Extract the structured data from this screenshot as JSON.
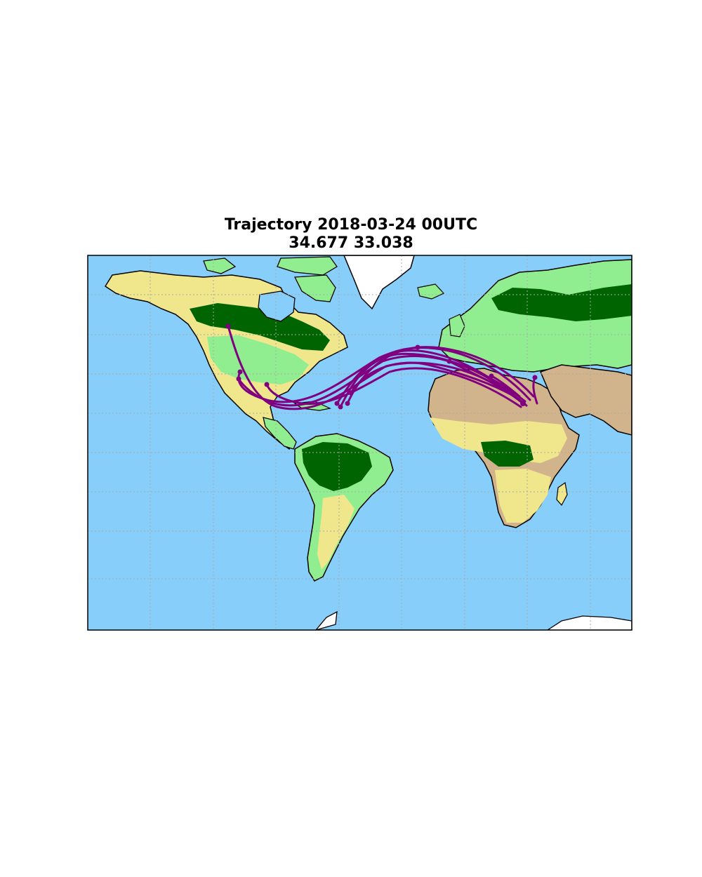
{
  "title": "Trajectory 2018-03-24 00UTC",
  "subtitle": "34.677 33.038",
  "colors": {
    "ocean": "#87cefa",
    "ice": "#ffffff",
    "grassland": "#90ee90",
    "forest": "#006400",
    "shrubland": "#f0e68c",
    "desert": "#d2b48c",
    "water": "#b0c4de",
    "trajectory": "#800080",
    "grid": "#aaaaaa",
    "frame": "#000000"
  }
}
